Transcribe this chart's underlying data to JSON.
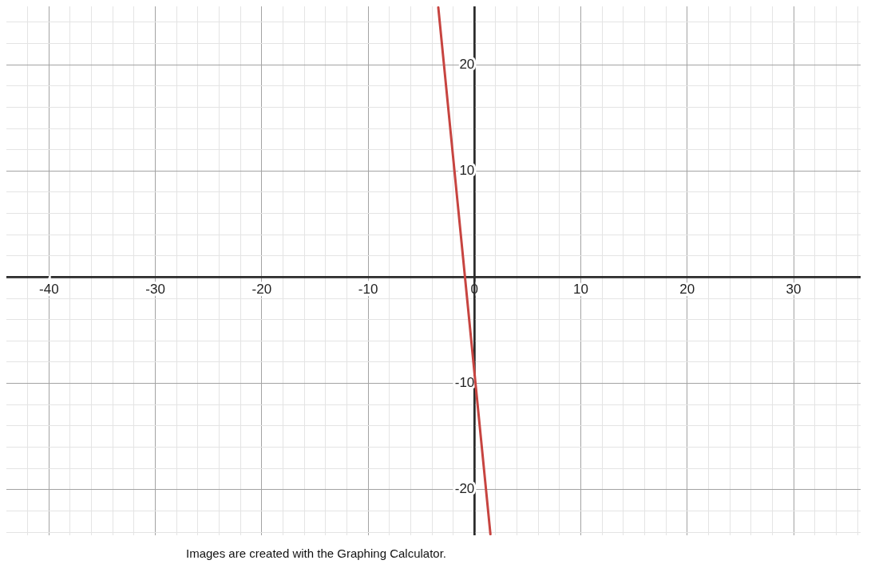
{
  "chart_data": {
    "type": "line",
    "x": [
      -3.4,
      1.5
    ],
    "values": [
      25.4,
      -24.2
    ],
    "color": "#c74440",
    "marker": "none",
    "xlim": [
      -44,
      36.3
    ],
    "ylim": [
      -24.3,
      25.5
    ],
    "xticks": [
      {
        "value": -42,
        "label": null
      },
      -40,
      {
        "value": -38,
        "label": null
      },
      {
        "value": -36,
        "label": null
      },
      {
        "value": -34,
        "label": null
      },
      {
        "value": -32,
        "label": null
      },
      -30,
      {
        "value": -28,
        "label": null
      },
      {
        "value": -26,
        "label": null
      },
      {
        "value": -24,
        "label": null
      },
      {
        "value": -22,
        "label": null
      },
      -20,
      {
        "value": -18,
        "label": null
      },
      {
        "value": -16,
        "label": null
      },
      {
        "value": -14,
        "label": null
      },
      {
        "value": -12,
        "label": null
      },
      -10,
      {
        "value": -8,
        "label": null
      },
      {
        "value": -6,
        "label": null
      },
      {
        "value": -4,
        "label": null
      },
      {
        "value": -2,
        "label": null
      },
      0,
      {
        "value": 2,
        "label": null
      },
      {
        "value": 4,
        "label": null
      },
      {
        "value": 6,
        "label": null
      },
      {
        "value": 8,
        "label": null
      },
      10,
      {
        "value": 12,
        "label": null
      },
      {
        "value": 14,
        "label": null
      },
      {
        "value": 16,
        "label": null
      },
      {
        "value": 18,
        "label": null
      },
      20,
      {
        "value": 22,
        "label": null
      },
      {
        "value": 24,
        "label": null
      },
      {
        "value": 26,
        "label": null
      },
      {
        "value": 28,
        "label": null
      },
      30,
      {
        "value": 32,
        "label": null
      },
      {
        "value": 34,
        "label": null
      },
      {
        "value": 36,
        "label": null
      }
    ],
    "yticks": [
      {
        "value": -24,
        "label": null
      },
      {
        "value": -22,
        "label": null
      },
      -20,
      {
        "value": -18,
        "label": null
      },
      {
        "value": -16,
        "label": null
      },
      {
        "value": -14,
        "label": null
      },
      {
        "value": -12,
        "label": null
      },
      -10,
      {
        "value": -8,
        "label": null
      },
      {
        "value": -6,
        "label": null
      },
      {
        "value": -4,
        "label": null
      },
      {
        "value": -2,
        "label": null
      },
      {
        "value": 0,
        "label": null
      },
      {
        "value": 2,
        "label": null
      },
      {
        "value": 4,
        "label": null
      },
      {
        "value": 6,
        "label": null
      },
      {
        "value": 8,
        "label": null
      },
      10,
      {
        "value": 12,
        "label": null
      },
      {
        "value": 14,
        "label": null
      },
      {
        "value": 16,
        "label": null
      },
      {
        "value": 18,
        "label": null
      },
      20,
      {
        "value": 22,
        "label": null
      },
      {
        "value": 24,
        "label": null
      }
    ],
    "grid": true,
    "annotations": [
      "Images are created with the Graphing Calculator."
    ]
  }
}
